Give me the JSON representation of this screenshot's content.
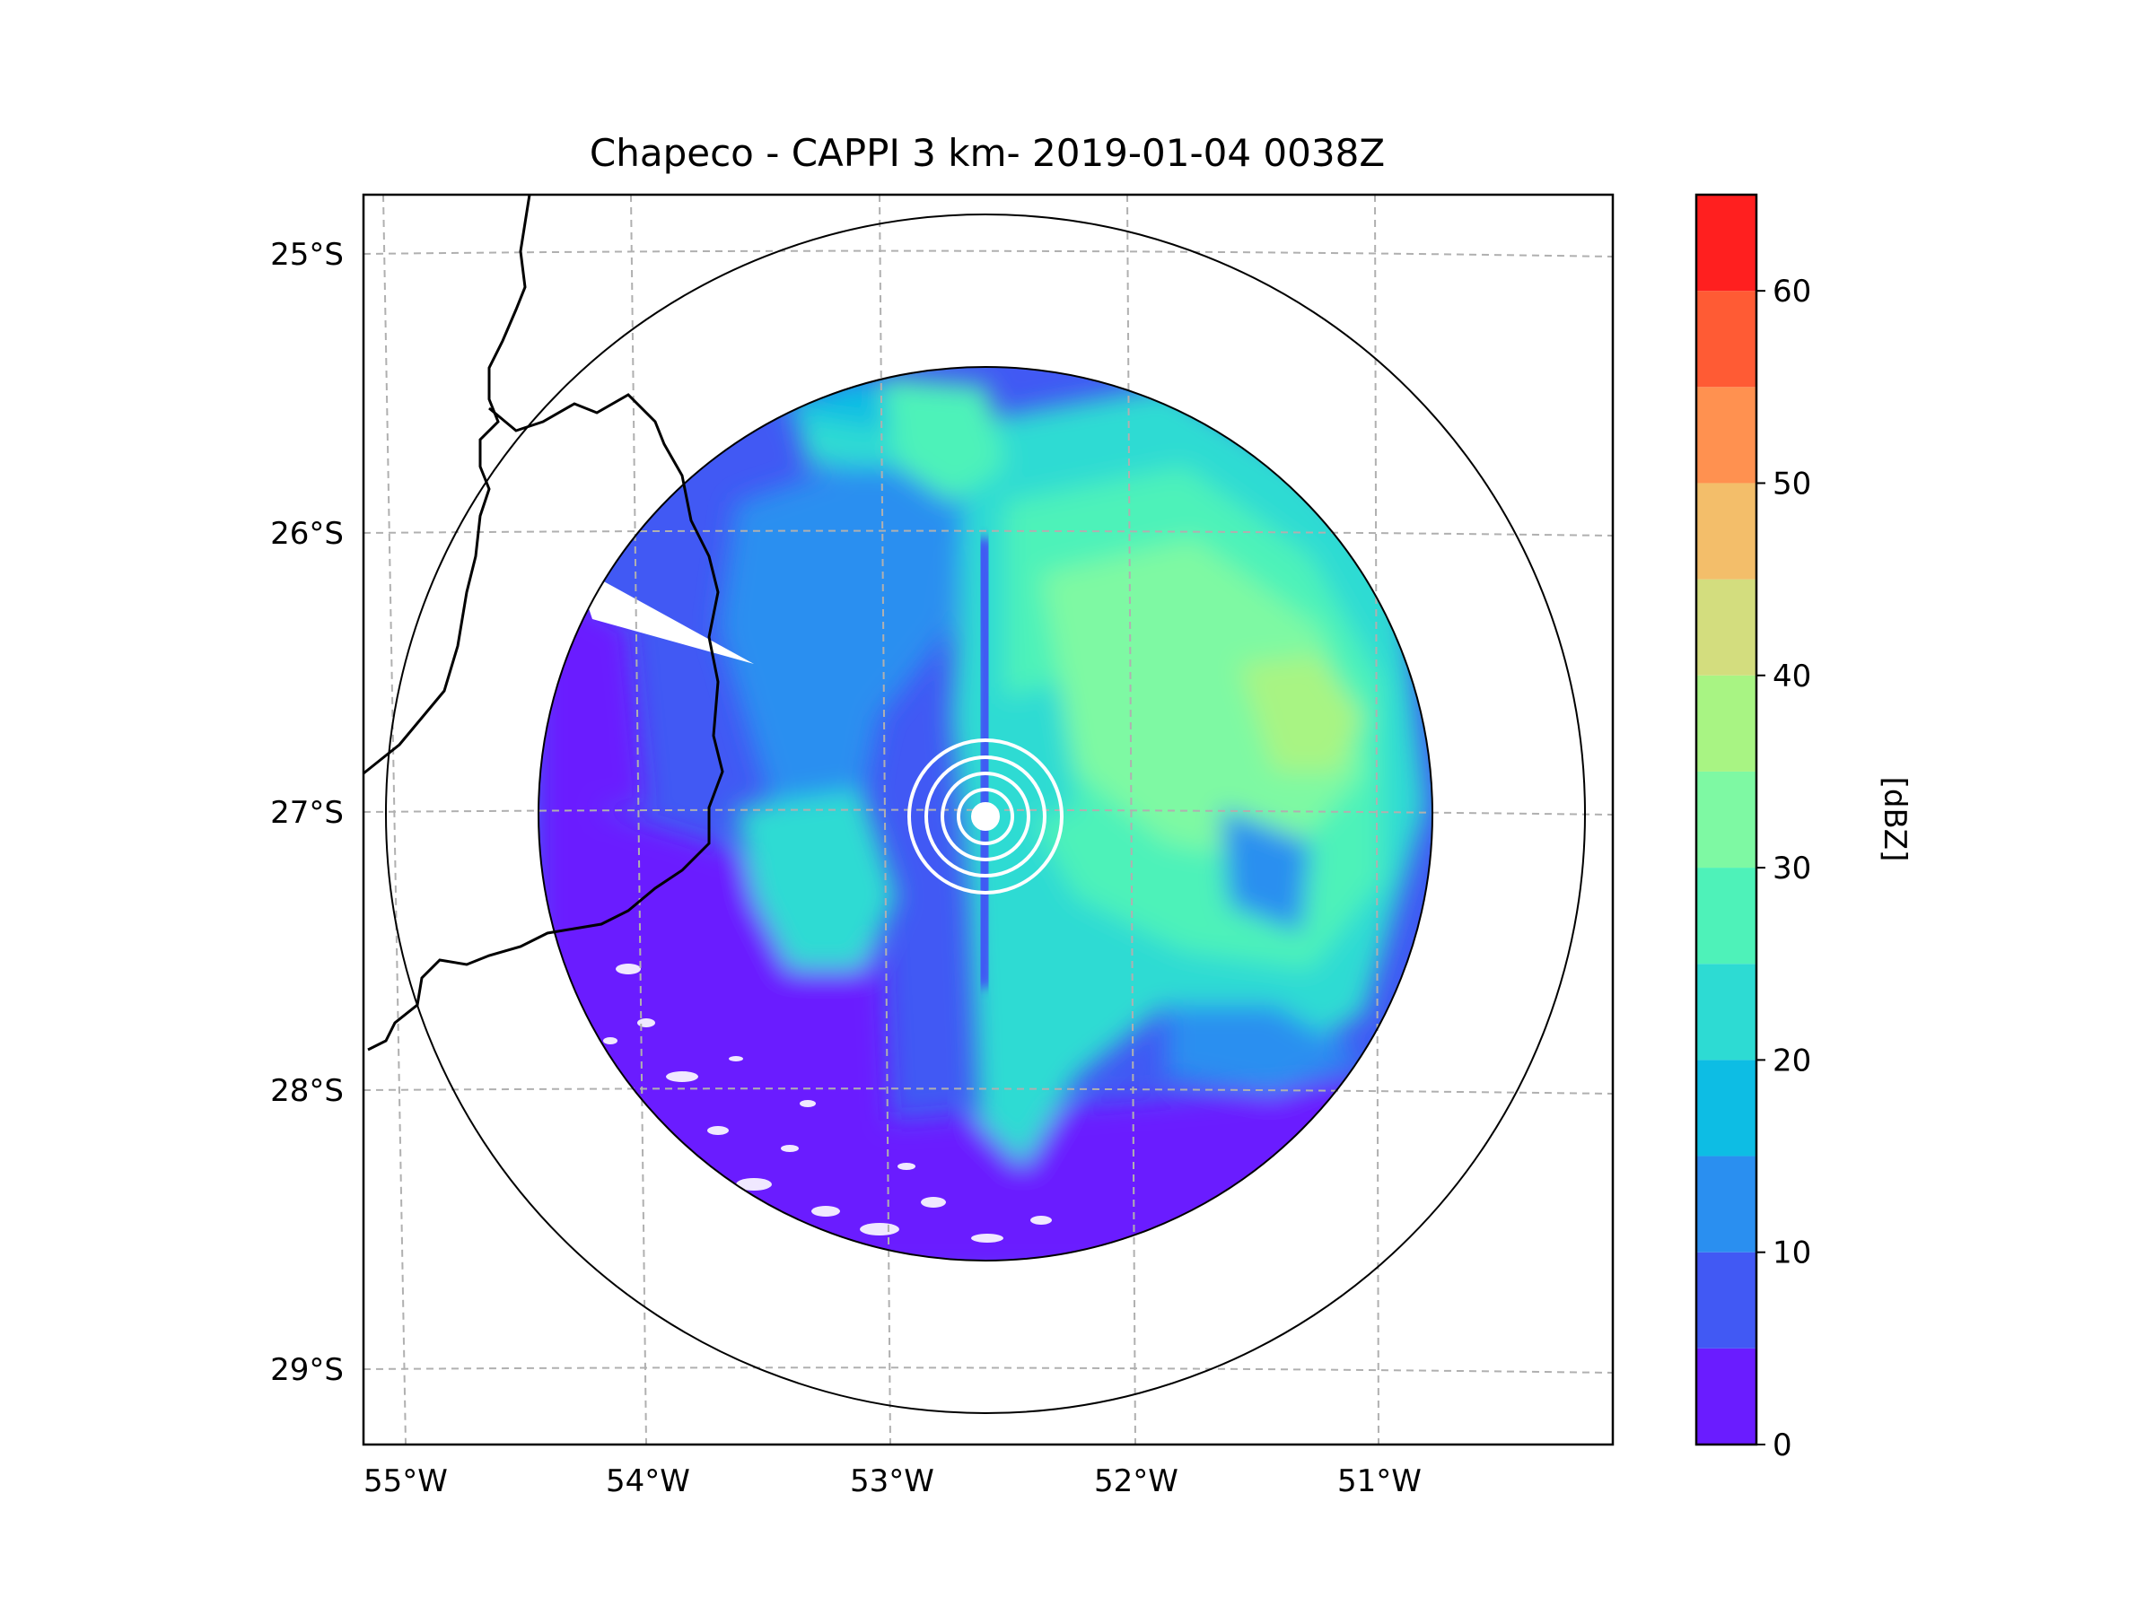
{
  "chart_data": {
    "type": "heatmap",
    "title": "Chapeco - CAPPI 3 km- 2019-01-04 0038Z",
    "product": "CAPPI",
    "radar_site": "Chapeco",
    "xlabel": "",
    "ylabel": "",
    "x_ticks": [
      "55°W",
      "54°W",
      "53°W",
      "52°W",
      "51°W"
    ],
    "y_ticks": [
      "25°S",
      "26°S",
      "27°S",
      "28°S",
      "29°S"
    ],
    "grid": true,
    "colorbar": {
      "label": "[dBZ]",
      "range": [
        0,
        65
      ],
      "step": 5,
      "tick_values": [
        0,
        10,
        20,
        30,
        40,
        50,
        60
      ],
      "tick_labels": [
        "0",
        "10",
        "20",
        "30",
        "40",
        "50",
        "60"
      ],
      "colors": [
        "#6a1cff",
        "#4159f4",
        "#2a8ff0",
        "#0dbde4",
        "#2ddbd3",
        "#4ef2b9",
        "#7ef9a3",
        "#a8f483",
        "#d3dd7e",
        "#f3be6a",
        "#ff9150",
        "#ff5b34",
        "#ff1f1f"
      ]
    },
    "radar_center_deg": [
      -52.6,
      -27.05
    ],
    "data_extent": "circular sweep, roughly 52.6°W–56° span; weak echoes (0–10 dBZ) in the south and west, 20–40 dBZ over the central and northeastern sectors, strongest near 51.2°W 26.8°S",
    "range_rings": "outer ring encloses the full sweep; white ground-clutter rings around the radar"
  },
  "colors": {
    "axes": "#000000",
    "grid": "#b0b0b0",
    "border": "#000000"
  }
}
